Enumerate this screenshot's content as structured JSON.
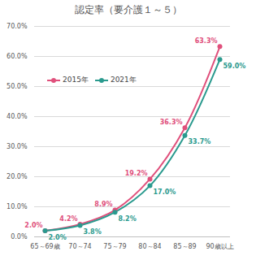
{
  "chart_data": {
    "type": "line",
    "title": "認定率（要介護１～５）",
    "categories": [
      "65～69歳",
      "70～74",
      "75～79",
      "80～84",
      "85～89",
      "90歳以上"
    ],
    "series": [
      {
        "name": "2015年",
        "color": "#e0507c",
        "marker": "circle",
        "values": [
          2.0,
          4.2,
          8.9,
          19.2,
          36.3,
          63.3
        ],
        "value_labels": [
          "2.0%",
          "4.2%",
          "8.9%",
          "19.2%",
          "36.3%",
          "63.3%"
        ]
      },
      {
        "name": "2021年",
        "color": "#2a9a8e",
        "marker": "circle",
        "values": [
          2.0,
          3.8,
          8.2,
          17.0,
          33.7,
          59.0
        ],
        "value_labels": [
          "2.0%",
          "3.8%",
          "8.2%",
          "17.0%",
          "33.7%",
          "59.0%"
        ]
      }
    ],
    "ylim": [
      0,
      70
    ],
    "yticks": [
      {
        "value": 0,
        "label": "0.0%"
      },
      {
        "value": 10,
        "label": "10.0%"
      },
      {
        "value": 20,
        "label": "20.0%"
      },
      {
        "value": 30,
        "label": "30.0%"
      },
      {
        "value": 40,
        "label": "40.0%"
      },
      {
        "value": 50,
        "label": "50.0%"
      },
      {
        "value": 60,
        "label": "60.0%"
      },
      {
        "value": 70,
        "label": "70.0%"
      }
    ],
    "grid": true,
    "legend": "upper left",
    "data_labels": true
  }
}
